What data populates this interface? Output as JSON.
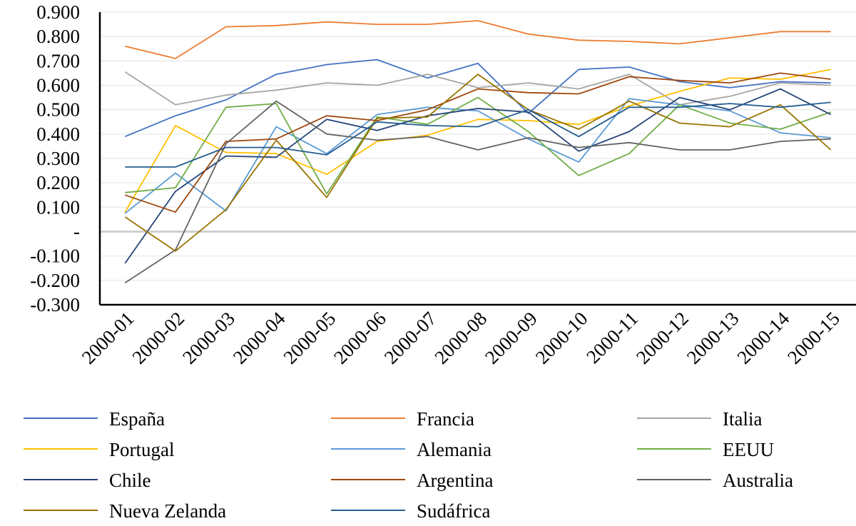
{
  "chart_data": {
    "type": "line",
    "title": "",
    "xlabel": "",
    "ylabel": "",
    "categories": [
      "2000-01",
      "2000-02",
      "2000-03",
      "2000-04",
      "2000-05",
      "2000-06",
      "2000-07",
      "2000-08",
      "2000-09",
      "2000-10",
      "2000-11",
      "2000-12",
      "2000-13",
      "2000-14",
      "2000-15"
    ],
    "ylim": [
      -0.3,
      0.9
    ],
    "yticks": [
      0.9,
      0.8,
      0.7,
      0.6,
      0.5,
      0.4,
      0.3,
      0.2,
      0.1,
      0,
      -0.1,
      -0.2,
      -0.3
    ],
    "ytick_labels": [
      "0.900",
      "0.800",
      "0.700",
      "0.600",
      "0.500",
      "0.400",
      "0.300",
      "0.200",
      "0.100",
      "-",
      "-0.100",
      "-0.200",
      "-0.300"
    ],
    "grid": "horizontal",
    "legend_position": "bottom",
    "series": [
      {
        "name": "España",
        "color": "#4472C4",
        "values": [
          0.39,
          0.475,
          0.54,
          0.645,
          0.685,
          0.705,
          0.63,
          0.69,
          0.485,
          0.665,
          0.675,
          0.615,
          0.59,
          0.615,
          0.61
        ]
      },
      {
        "name": "Francia",
        "color": "#ED7D31",
        "values": [
          0.76,
          0.71,
          0.84,
          0.845,
          0.86,
          0.85,
          0.85,
          0.865,
          0.81,
          0.785,
          0.78,
          0.77,
          0.795,
          0.82,
          0.82
        ]
      },
      {
        "name": "Italia",
        "color": "#A5A5A5",
        "values": [
          0.655,
          0.52,
          0.56,
          0.58,
          0.61,
          0.6,
          0.645,
          0.59,
          0.61,
          0.585,
          0.645,
          0.52,
          0.555,
          0.61,
          0.6
        ]
      },
      {
        "name": "Portugal",
        "color": "#FFC000",
        "values": [
          0.08,
          0.435,
          0.325,
          0.32,
          0.235,
          0.37,
          0.395,
          0.46,
          0.455,
          0.44,
          0.515,
          0.575,
          0.63,
          0.625,
          0.665
        ]
      },
      {
        "name": "Alemania",
        "color": "#5B9BD5",
        "values": [
          0.075,
          0.24,
          0.085,
          0.43,
          0.32,
          0.48,
          0.51,
          0.495,
          0.38,
          0.285,
          0.545,
          0.52,
          0.495,
          0.405,
          0.385
        ]
      },
      {
        "name": "EEUU",
        "color": "#70AD47",
        "values": [
          0.16,
          0.18,
          0.51,
          0.525,
          0.155,
          0.47,
          0.44,
          0.55,
          0.41,
          0.23,
          0.32,
          0.52,
          0.445,
          0.42,
          0.49
        ]
      },
      {
        "name": "Chile",
        "color": "#264478",
        "values": [
          -0.13,
          0.165,
          0.31,
          0.305,
          0.46,
          0.415,
          0.475,
          0.505,
          0.49,
          0.33,
          0.41,
          0.55,
          0.5,
          0.585,
          0.48
        ]
      },
      {
        "name": "Argentina",
        "color": "#9E480E",
        "values": [
          0.15,
          0.08,
          0.37,
          0.38,
          0.475,
          0.455,
          0.5,
          0.585,
          0.57,
          0.565,
          0.635,
          0.62,
          0.61,
          0.65,
          0.625
        ]
      },
      {
        "name": "Australia",
        "color": "#636363",
        "values": [
          -0.21,
          -0.075,
          0.36,
          0.535,
          0.4,
          0.375,
          0.39,
          0.335,
          0.385,
          0.345,
          0.365,
          0.335,
          0.335,
          0.37,
          0.38
        ]
      },
      {
        "name": "Nueva Zelanda",
        "color": "#997300",
        "values": [
          0.06,
          -0.08,
          0.09,
          0.375,
          0.14,
          0.465,
          0.47,
          0.645,
          0.5,
          0.42,
          0.535,
          0.445,
          0.43,
          0.52,
          0.335
        ]
      },
      {
        "name": "Sudáfrica",
        "color": "#255E91",
        "values": [
          0.265,
          0.265,
          0.345,
          0.345,
          0.315,
          0.45,
          0.435,
          0.43,
          0.5,
          0.39,
          0.51,
          0.51,
          0.525,
          0.51,
          0.53
        ]
      }
    ]
  }
}
